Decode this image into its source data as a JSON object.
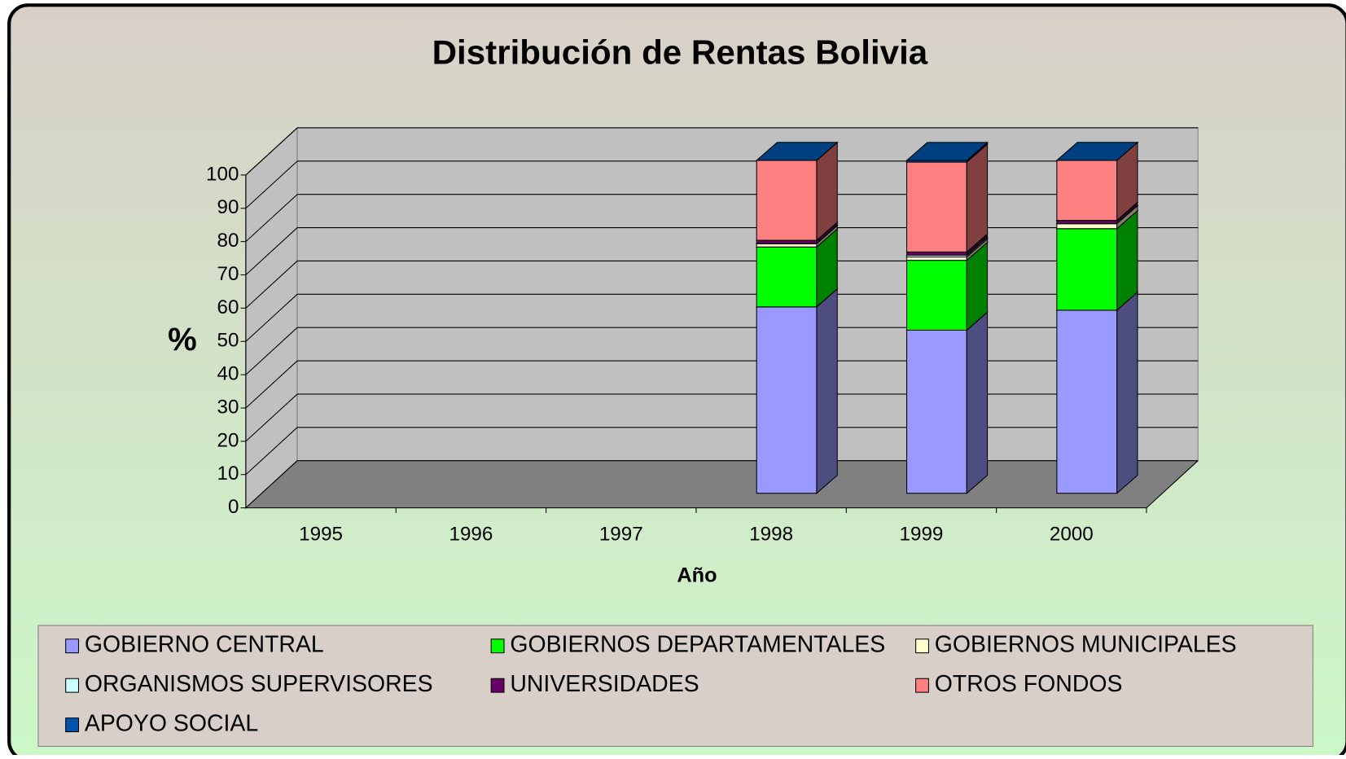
{
  "chart_data": {
    "type": "bar3d_stacked",
    "title": "Distribución de Rentas Bolivia",
    "x_label": "Año",
    "y_label": "%",
    "categories": [
      "1995",
      "1996",
      "1997",
      "1998",
      "1999",
      "2000"
    ],
    "series": [
      {
        "name": "GOBIERNO CENTRAL",
        "color": "#9999ff",
        "values": [
          null,
          null,
          null,
          56,
          49,
          55
        ]
      },
      {
        "name": "GOBIERNOS DEPARTAMENTALES",
        "color": "#00ff00",
        "values": [
          null,
          null,
          null,
          18,
          21,
          24.5
        ]
      },
      {
        "name": "GOBIERNOS MUNICIPALES",
        "color": "#ffffcc",
        "values": [
          null,
          null,
          null,
          1,
          1,
          1.5
        ]
      },
      {
        "name": "ORGANISMOS SUPERVISORES",
        "color": "#ccffff",
        "values": [
          null,
          null,
          null,
          0,
          0.5,
          0
        ]
      },
      {
        "name": "UNIVERSIDADES",
        "color": "#660066",
        "values": [
          null,
          null,
          null,
          1,
          1,
          1
        ]
      },
      {
        "name": "OTROS FONDOS",
        "color": "#ff8080",
        "values": [
          null,
          null,
          null,
          24,
          27,
          18
        ]
      },
      {
        "name": "APOYO SOCIAL",
        "color": "#0055aa",
        "values": [
          null,
          null,
          null,
          0,
          0.5,
          0
        ]
      }
    ],
    "ylim": [
      0,
      100
    ],
    "yticks": [
      0,
      10,
      20,
      30,
      40,
      50,
      60,
      70,
      80,
      90,
      100
    ],
    "grid": true
  }
}
